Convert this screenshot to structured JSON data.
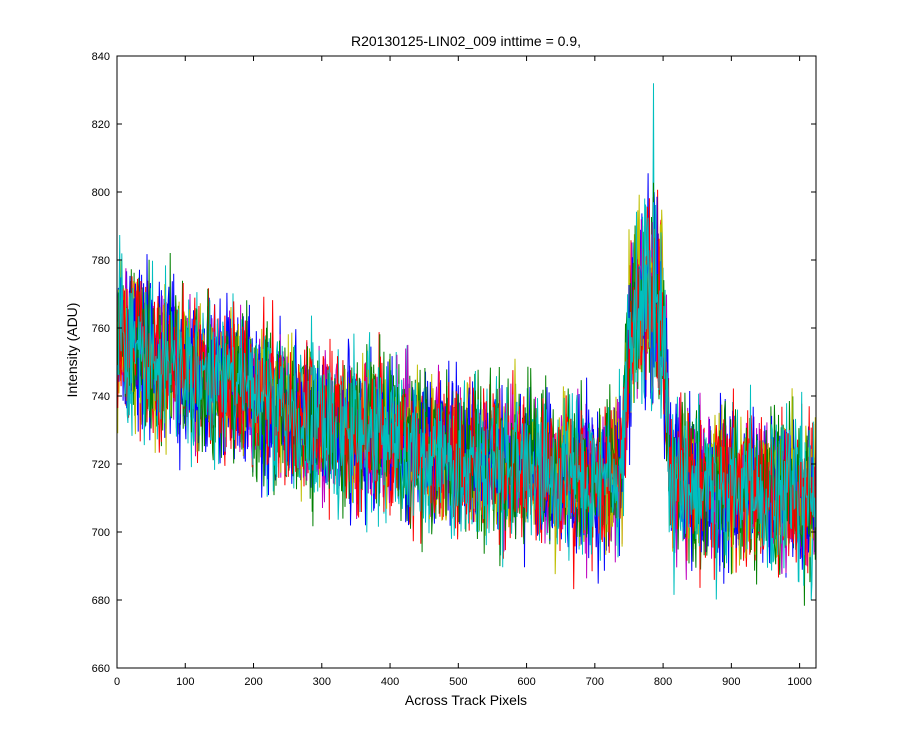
{
  "chart_data": {
    "type": "line",
    "title": "R20130125-LIN02_009 inttime = 0.9,",
    "xlabel": "Across Track Pixels",
    "ylabel": "Intensity (ADU)",
    "xlim": [
      0,
      1024
    ],
    "ylim": [
      660,
      840
    ],
    "x_ticks": [
      0,
      100,
      200,
      300,
      400,
      500,
      600,
      700,
      800,
      900,
      1000
    ],
    "y_ticks": [
      660,
      680,
      700,
      720,
      740,
      760,
      780,
      800,
      820,
      840
    ],
    "grid": false,
    "legend": "none",
    "series_colors": [
      "#0000ff",
      "#008000",
      "#ff0000",
      "#00bfbf",
      "#bf00bf",
      "#bfbf00",
      "#0000ff",
      "#008000",
      "#ff0000",
      "#00bfbf"
    ],
    "series_count": 10,
    "x_points": 1024,
    "trend": {
      "x": [
        0,
        100,
        200,
        300,
        400,
        500,
        600,
        700,
        740,
        750,
        760,
        780,
        800,
        810,
        900,
        1024
      ],
      "y": [
        757,
        748,
        740,
        732,
        727,
        722,
        719,
        716,
        715,
        760,
        765,
        770,
        765,
        716,
        713,
        711
      ]
    },
    "noise_amplitude": 11,
    "peak": {
      "x_range": [
        750,
        805
      ],
      "max": 832,
      "max_x": 786
    }
  }
}
